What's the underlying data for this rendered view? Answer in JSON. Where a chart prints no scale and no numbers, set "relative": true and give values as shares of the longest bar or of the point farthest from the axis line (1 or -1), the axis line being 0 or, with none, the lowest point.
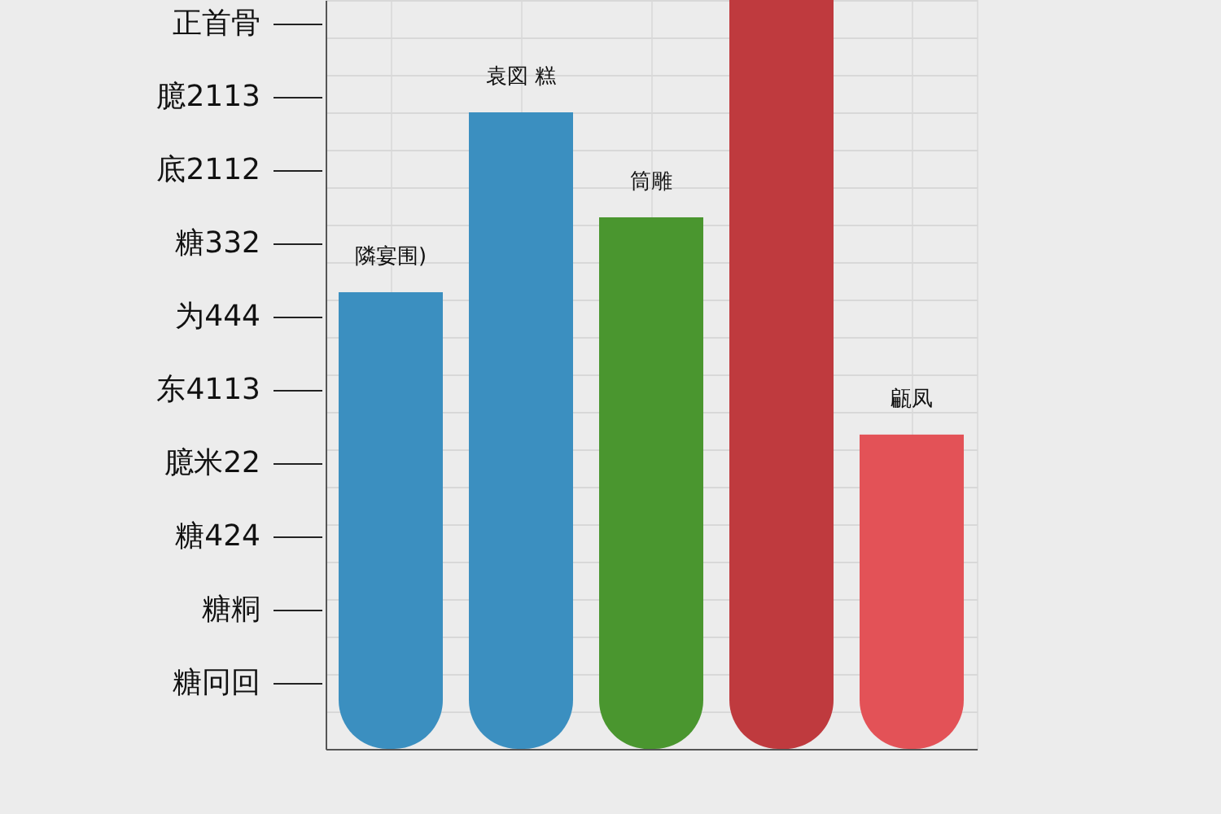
{
  "chart_data": {
    "type": "bar",
    "relative": true,
    "grid": true,
    "categories": [
      "隣宴围)",
      "袁図 糕",
      "筒雕",
      null,
      "甂凤"
    ],
    "values": [
      0.61,
      0.85,
      0.71,
      1,
      0.42
    ],
    "colors": [
      "#3b8fc0",
      "#3b8fc0",
      "#4a962f",
      "#bf3a3e",
      "#e35257"
    ],
    "annotations": [
      "正首骨",
      "臆2113",
      "底2112",
      "糖332",
      "为444",
      "东4113",
      "臆米22",
      "糖424",
      "糖粡",
      "糖冋回"
    ]
  }
}
